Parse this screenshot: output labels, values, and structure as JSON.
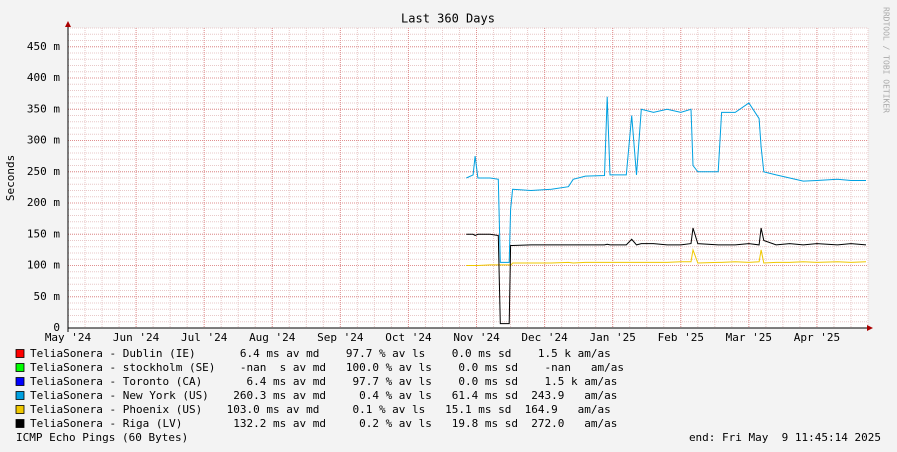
{
  "chart_data": {
    "type": "line",
    "title": "Last 360 Days",
    "y_label": "Seconds",
    "side_note": "RRDTOOL / TOBI OETIKER",
    "footer_left": "ICMP Echo Pings (60 Bytes)",
    "footer_right": "end: Fri May  9 11:45:14 2025",
    "grid": true,
    "xlim": [
      0,
      11.75
    ],
    "ylim": [
      0,
      0.48
    ],
    "xticks": [
      {
        "value": 0,
        "label": "May '24"
      },
      {
        "value": 1,
        "label": "Jun '24"
      },
      {
        "value": 2,
        "label": "Jul '24"
      },
      {
        "value": 3,
        "label": "Aug '24"
      },
      {
        "value": 4,
        "label": "Sep '24"
      },
      {
        "value": 5,
        "label": "Oct '24"
      },
      {
        "value": 6,
        "label": "Nov '24"
      },
      {
        "value": 7,
        "label": "Dec '24"
      },
      {
        "value": 8,
        "label": "Jan '25"
      },
      {
        "value": 9,
        "label": "Feb '25"
      },
      {
        "value": 10,
        "label": "Mar '25"
      },
      {
        "value": 11,
        "label": "Apr '25"
      }
    ],
    "yticks": [
      0,
      {
        "value": 0.05,
        "label": "50 m"
      },
      {
        "value": 0.1,
        "label": "100 m"
      },
      {
        "value": 0.15,
        "label": "150 m"
      },
      {
        "value": 0.2,
        "label": "200 m"
      },
      {
        "value": 0.25,
        "label": "250 m"
      },
      {
        "value": 0.3,
        "label": "300 m"
      },
      {
        "value": 0.35,
        "label": "350 m"
      },
      {
        "value": 0.4,
        "label": "400 m"
      },
      {
        "value": 0.45,
        "label": "450 m"
      }
    ],
    "x": [
      5.85,
      5.95,
      5.98,
      6.02,
      6.2,
      6.32,
      6.35,
      6.48,
      6.5,
      6.53,
      6.8,
      7.1,
      7.35,
      7.42,
      7.6,
      7.88,
      7.92,
      7.96,
      8.2,
      8.28,
      8.35,
      8.42,
      8.6,
      8.8,
      9.0,
      9.15,
      9.18,
      9.25,
      9.55,
      9.6,
      9.8,
      10.0,
      10.15,
      10.18,
      10.22,
      10.4,
      10.6,
      10.8,
      11.0,
      11.3,
      11.5,
      11.72
    ],
    "series": [
      {
        "name": "TeliaSonera - Dublin (IE)",
        "stats": "   6.4 ms av md    97.7 % av ls    0.0 ms sd    1.5 k am/as",
        "color": "#ff0000",
        "values": [
          null,
          null,
          null,
          null,
          null,
          null,
          null,
          null,
          null,
          null,
          null,
          null,
          null,
          null,
          null,
          null,
          null,
          null,
          null,
          null,
          null,
          null,
          null,
          null,
          null,
          null,
          null,
          null,
          null,
          null,
          null,
          null,
          null,
          null,
          null,
          null,
          null,
          null,
          null,
          null,
          null,
          null
        ]
      },
      {
        "name": "TeliaSonera - stockholm (SE)",
        "stats": "   -nan  s av md   100.0 % av ls    0.0 ms sd    -nan   am/as",
        "color": "#00ff00",
        "values": [
          null,
          null,
          null,
          null,
          null,
          null,
          null,
          null,
          null,
          null,
          null,
          null,
          null,
          null,
          null,
          null,
          null,
          null,
          null,
          null,
          null,
          null,
          null,
          null,
          null,
          null,
          null,
          null,
          null,
          null,
          null,
          null,
          null,
          null,
          null,
          null,
          null,
          null,
          null,
          null,
          null,
          null
        ]
      },
      {
        "name": "TeliaSonera - Toronto (CA)",
        "stats": "    6.4 ms av md    97.7 % av ls    0.0 ms sd    1.5 k am/as",
        "color": "#0000ff",
        "values": [
          null,
          null,
          null,
          null,
          null,
          null,
          null,
          null,
          null,
          null,
          null,
          null,
          null,
          null,
          null,
          null,
          null,
          null,
          null,
          null,
          null,
          null,
          null,
          null,
          null,
          null,
          null,
          null,
          null,
          null,
          null,
          null,
          null,
          null,
          null,
          null,
          null,
          null,
          null,
          null,
          null,
          null
        ]
      },
      {
        "name": "TeliaSonera - New York (US)",
        "stats": "  260.3 ms av md     0.4 % av ls   61.4 ms sd  243.9   am/as",
        "color": "#00a0e0",
        "values": [
          0.24,
          0.245,
          0.275,
          0.24,
          0.24,
          0.238,
          0.105,
          0.105,
          0.19,
          0.222,
          0.22,
          0.222,
          0.226,
          0.238,
          0.243,
          0.244,
          0.37,
          0.245,
          0.245,
          0.34,
          0.245,
          0.35,
          0.345,
          0.35,
          0.345,
          0.35,
          0.26,
          0.25,
          0.25,
          0.345,
          0.345,
          0.36,
          0.335,
          0.29,
          0.25,
          0.245,
          0.24,
          0.235,
          0.236,
          0.238,
          0.236,
          0.236
        ]
      },
      {
        "name": "TeliaSonera - Phoenix (US)",
        "stats": " 103.0 ms av md     0.1 % av ls   15.1 ms sd  164.9   am/as",
        "color": "#f0c800",
        "values": [
          0.1,
          0.1,
          0.1,
          0.1,
          0.101,
          0.101,
          0.101,
          0.101,
          0.1,
          0.104,
          0.104,
          0.104,
          0.105,
          0.104,
          0.105,
          0.105,
          0.105,
          0.105,
          0.105,
          0.105,
          0.105,
          0.105,
          0.105,
          0.105,
          0.106,
          0.106,
          0.125,
          0.104,
          0.105,
          0.105,
          0.106,
          0.105,
          0.106,
          0.125,
          0.104,
          0.105,
          0.105,
          0.106,
          0.105,
          0.106,
          0.105,
          0.106
        ]
      },
      {
        "name": "TeliaSonera - Riga (LV)",
        "stats": "  132.2 ms av md     0.2 % av ls   19.8 ms sd  272.0   am/as",
        "color": "#000000",
        "values": [
          0.15,
          0.15,
          0.148,
          0.15,
          0.15,
          0.148,
          0.007,
          0.007,
          0.132,
          0.132,
          0.133,
          0.133,
          0.133,
          0.133,
          0.133,
          0.133,
          0.134,
          0.133,
          0.133,
          0.142,
          0.133,
          0.135,
          0.135,
          0.133,
          0.133,
          0.135,
          0.16,
          0.135,
          0.133,
          0.133,
          0.133,
          0.135,
          0.133,
          0.16,
          0.14,
          0.133,
          0.135,
          0.133,
          0.135,
          0.133,
          0.135,
          0.133
        ]
      }
    ]
  }
}
